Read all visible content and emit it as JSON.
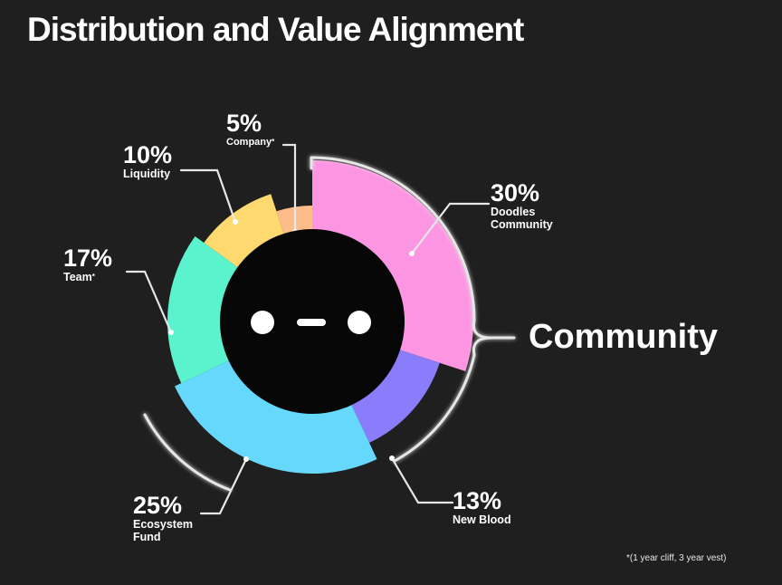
{
  "title": "Distribution and Value Alignment",
  "group_label": "Community",
  "footnote": "*(1 year cliff, 3 year vest)",
  "chart_data": {
    "type": "pie",
    "title": "Distribution and Value Alignment",
    "slices": [
      {
        "label": "Doodles Community",
        "value": 30,
        "display": "30%",
        "color": "#fd96e2"
      },
      {
        "label": "New Blood",
        "value": 13,
        "display": "13%",
        "color": "#8a7dfc"
      },
      {
        "label": "Ecosystem Fund",
        "value": 25,
        "display": "25%",
        "color": "#66d8fc"
      },
      {
        "label": "Team",
        "value": 17,
        "display": "17%",
        "color": "#5af3cd",
        "asterisk": "*"
      },
      {
        "label": "Liquidity",
        "value": 10,
        "display": "10%",
        "color": "#fdd96f"
      },
      {
        "label": "Company",
        "value": 5,
        "display": "5%",
        "color": "#fdbd8b",
        "asterisk": "*"
      }
    ]
  },
  "labels": {
    "community": {
      "pct": "30%",
      "line1": "Doodles",
      "line2": "Community"
    },
    "new_blood": {
      "pct": "13%",
      "name": "New Blood"
    },
    "ecosystem": {
      "pct": "25%",
      "line1": "Ecosystem",
      "line2": "Fund"
    },
    "team": {
      "pct": "17%",
      "name": "Team",
      "ast": "*"
    },
    "liquidity": {
      "pct": "10%",
      "name": "Liquidity"
    },
    "company": {
      "pct": "5%",
      "name": "Company",
      "ast": "*"
    }
  }
}
